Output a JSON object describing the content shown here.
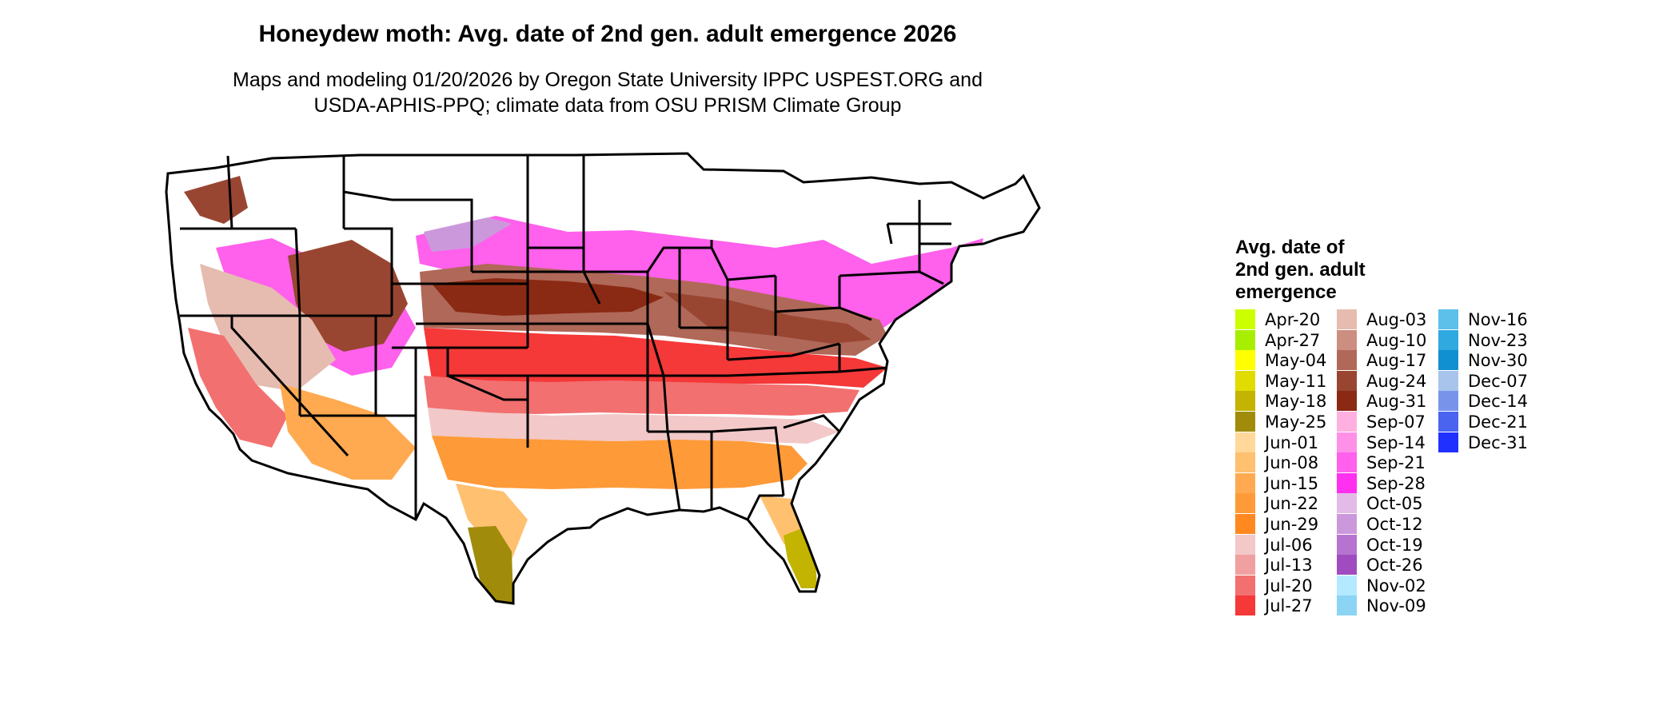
{
  "map": {
    "title": "Honeydew moth: Avg. date of 2nd gen. adult emergence 2026",
    "subtitle_line1": "Maps and modeling 01/20/2026 by Oregon State University IPPC USPEST.ORG and",
    "subtitle_line2": "USDA-APHIS-PPQ; climate data from OSU PRISM Climate Group",
    "legend_title_line1": "Avg. date of",
    "legend_title_line2": "2nd gen. adult",
    "legend_title_line3": "emergence",
    "legend": [
      {
        "label": "Apr-20",
        "color": "#ccff00"
      },
      {
        "label": "Apr-27",
        "color": "#a8ee00"
      },
      {
        "label": "May-04",
        "color": "#ffff00"
      },
      {
        "label": "May-11",
        "color": "#e0dc00"
      },
      {
        "label": "May-18",
        "color": "#c2b400"
      },
      {
        "label": "May-25",
        "color": "#a08c0a"
      },
      {
        "label": "Jun-01",
        "color": "#ffd89a"
      },
      {
        "label": "Jun-08",
        "color": "#ffc070"
      },
      {
        "label": "Jun-15",
        "color": "#ffaa50"
      },
      {
        "label": "Jun-22",
        "color": "#ff9a38"
      },
      {
        "label": "Jun-29",
        "color": "#ff8820"
      },
      {
        "label": "Jul-06",
        "color": "#f2c8c8"
      },
      {
        "label": "Jul-13",
        "color": "#f0a0a0"
      },
      {
        "label": "Jul-20",
        "color": "#f27070"
      },
      {
        "label": "Jul-27",
        "color": "#f53838"
      },
      {
        "label": "Aug-03",
        "color": "#e6bcb0"
      },
      {
        "label": "Aug-10",
        "color": "#cc8e80"
      },
      {
        "label": "Aug-17",
        "color": "#b06858"
      },
      {
        "label": "Aug-24",
        "color": "#984632"
      },
      {
        "label": "Aug-31",
        "color": "#8a2a14"
      },
      {
        "label": "Sep-07",
        "color": "#ffb0e0"
      },
      {
        "label": "Sep-14",
        "color": "#ff90e8"
      },
      {
        "label": "Sep-21",
        "color": "#ff60ec"
      },
      {
        "label": "Sep-28",
        "color": "#ff30f0"
      },
      {
        "label": "Oct-05",
        "color": "#e2bce6"
      },
      {
        "label": "Oct-12",
        "color": "#cc98dc"
      },
      {
        "label": "Oct-19",
        "color": "#b674d0"
      },
      {
        "label": "Oct-26",
        "color": "#a04cc0"
      },
      {
        "label": "Nov-02",
        "color": "#b4eaff"
      },
      {
        "label": "Nov-09",
        "color": "#8cd4f4"
      },
      {
        "label": "Nov-16",
        "color": "#5cc0ea"
      },
      {
        "label": "Nov-23",
        "color": "#30a8e0"
      },
      {
        "label": "Nov-30",
        "color": "#1090d0"
      },
      {
        "label": "Dec-07",
        "color": "#a8c4ec"
      },
      {
        "label": "Dec-14",
        "color": "#7894ea"
      },
      {
        "label": "Dec-21",
        "color": "#4a64f0"
      },
      {
        "label": "Dec-31",
        "color": "#2030ff"
      }
    ]
  }
}
